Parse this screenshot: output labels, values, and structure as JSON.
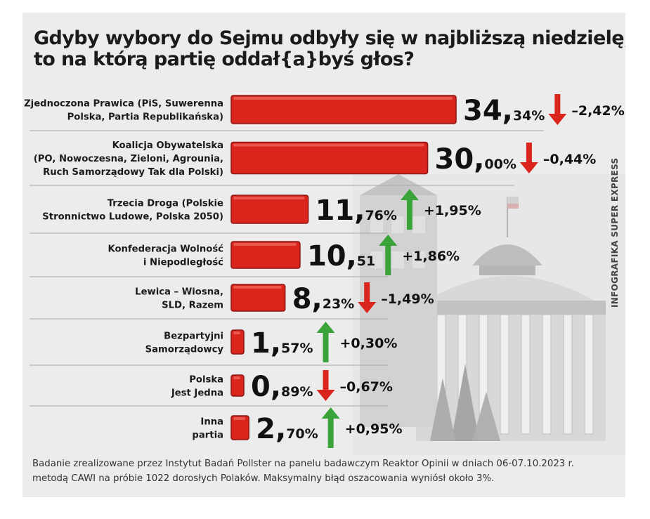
{
  "title": {
    "line1": "Gdyby wybory do Sejmu odbyły się w najbliższą niedzielę,",
    "line2": "to na którą partię oddał{a}byś głos?"
  },
  "colors": {
    "bar": "#d9251c",
    "bar_edge": "#8e1510",
    "arrow_up": "#3aa33a",
    "arrow_down": "#d9251c"
  },
  "chart_data": {
    "type": "bar",
    "orientation": "horizontal",
    "unit": "%",
    "categories": [
      "Zjednoczona Prawica (PiS, Suwerenna Polska, Partia Republikańska)",
      "Koalicja Obywatelska (PO, Nowoczesna, Zieloni, Agrounia, Ruch Samorządowy Tak dla Polski)",
      "Trzecia Droga (Polskie Stronnictwo Ludowe, Polska 2050)",
      "Konfederacja Wolność i Niepodległość",
      "Lewica – Wiosna, SLD, Razem",
      "Bezpartyjni Samorządowcy",
      "Polska Jest Jedna",
      "Inna partia"
    ],
    "rows": [
      {
        "label_lines": [
          "Zjednoczona Prawica (PiS, Suwerenna",
          "Polska, Partia Republikańska)"
        ],
        "value": 34.34,
        "value_int": "34,",
        "value_dec": "34%",
        "change": -2.42,
        "change_label": "–2,42%"
      },
      {
        "label_lines": [
          "Koalicja Obywatelska",
          "(PO, Nowoczesna, Zieloni, Agrounia,",
          "Ruch Samorządowy Tak dla Polski)"
        ],
        "value": 30.0,
        "value_int": "30,",
        "value_dec": "00%",
        "change": -0.44,
        "change_label": "–0,44%"
      },
      {
        "label_lines": [
          "Trzecia Droga (Polskie",
          "Stronnictwo Ludowe, Polska 2050)"
        ],
        "value": 11.76,
        "value_int": "11,",
        "value_dec": "76%",
        "change": 1.95,
        "change_label": "+1,95%"
      },
      {
        "label_lines": [
          "Konfederacja Wolność",
          "i Niepodległość"
        ],
        "value": 10.51,
        "value_int": "10,",
        "value_dec": "51",
        "change": 1.86,
        "change_label": "+1,86%"
      },
      {
        "label_lines": [
          "Lewica – Wiosna,",
          "SLD, Razem"
        ],
        "value": 8.23,
        "value_int": "8,",
        "value_dec": "23%",
        "change": -1.49,
        "change_label": "–1,49%"
      },
      {
        "label_lines": [
          "Bezpartyjni",
          "Samorządowcy"
        ],
        "value": 1.57,
        "value_int": "1,",
        "value_dec": "57%",
        "change": 0.3,
        "change_label": "+0,30%"
      },
      {
        "label_lines": [
          "Polska",
          "Jest Jedna"
        ],
        "value": 0.89,
        "value_int": "0,",
        "value_dec": "89%",
        "change": -0.67,
        "change_label": "–0,67%"
      },
      {
        "label_lines": [
          "Inna",
          "partia"
        ],
        "value": 2.7,
        "value_int": "2,",
        "value_dec": "70%",
        "change": 0.95,
        "change_label": "+0,95%"
      }
    ],
    "xlim": [
      0,
      34.34
    ],
    "grid": false,
    "legend": "none"
  },
  "credit": "INFOGRAFIKA SUPER EXPRESS",
  "footnote": {
    "line1": "Badanie zrealizowane przez Instytut Badań Pollster na panelu badawczym Reaktor Opinii w dniach 06-07.10.2023 r.",
    "line2": "metodą CAWI na próbie 1022 dorosłych Polaków. Maksymalny błąd oszacowania wyniósł około 3%."
  }
}
